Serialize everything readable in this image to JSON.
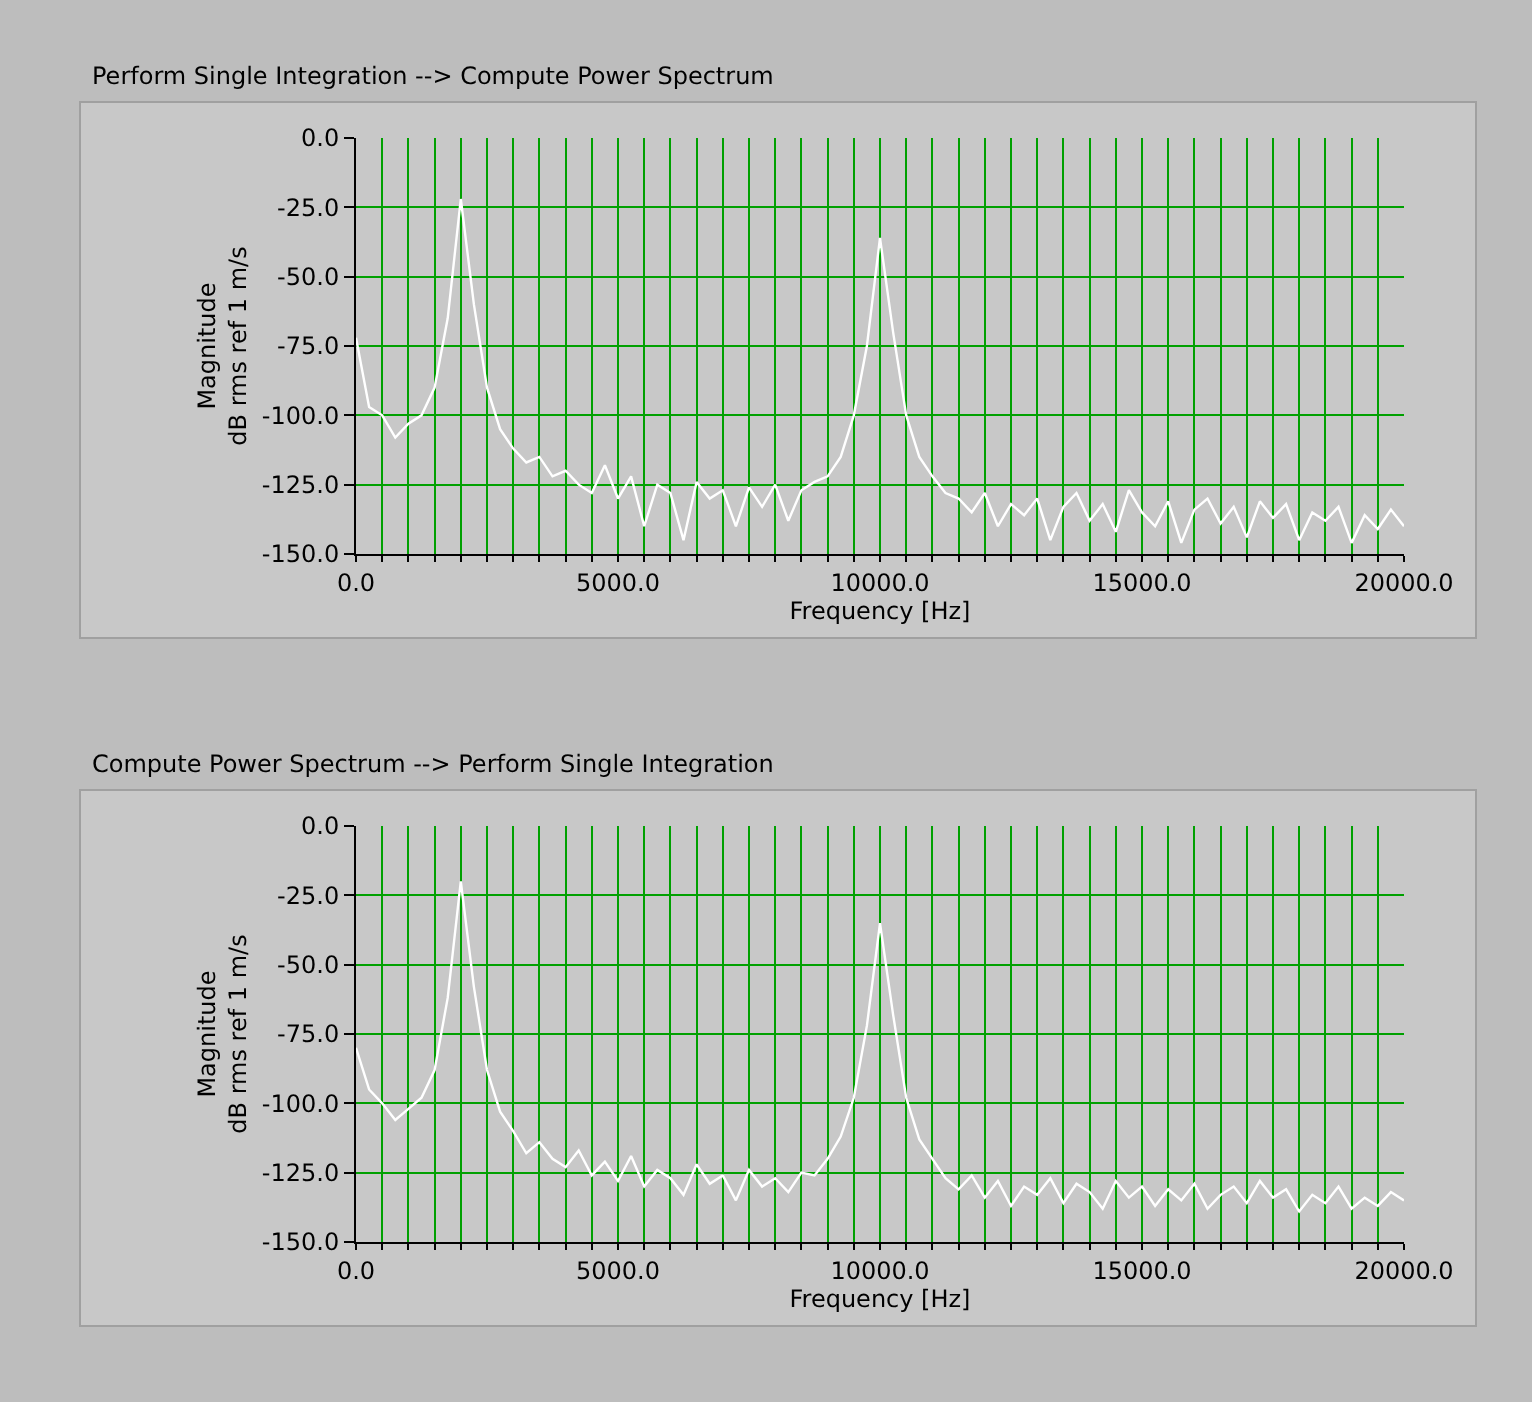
{
  "chart_data": [
    {
      "type": "line",
      "title": "Perform Single Integration --> Compute Power Spectrum",
      "xlabel": "Frequency [Hz]",
      "ylabel": "Magnitude\ndB rms ref 1 m/s",
      "x": [
        0,
        250,
        500,
        750,
        1000,
        1250,
        1500,
        1750,
        2000,
        2250,
        2500,
        2750,
        3000,
        3250,
        3500,
        3750,
        4000,
        4250,
        4500,
        4750,
        5000,
        5250,
        5500,
        5750,
        6000,
        6250,
        6500,
        6750,
        7000,
        7250,
        7500,
        7750,
        8000,
        8250,
        8500,
        8750,
        9000,
        9250,
        9500,
        9750,
        10000,
        10250,
        10500,
        10750,
        11000,
        11250,
        11500,
        11750,
        12000,
        12250,
        12500,
        12750,
        13000,
        13250,
        13500,
        13750,
        14000,
        14250,
        14500,
        14750,
        15000,
        15250,
        15500,
        15750,
        16000,
        16250,
        16500,
        16750,
        17000,
        17250,
        17500,
        17750,
        18000,
        18250,
        18500,
        18750,
        19000,
        19250,
        19500,
        19750,
        20000
      ],
      "series": [
        {
          "color": "#ffffff",
          "values": [
            -72,
            -97,
            -100,
            -108,
            -103,
            -100,
            -90,
            -65,
            -22,
            -60,
            -90,
            -105,
            -112,
            -117,
            -115,
            -122,
            -120,
            -125,
            -128,
            -118,
            -130,
            -122,
            -140,
            -125,
            -128,
            -145,
            -124,
            -130,
            -127,
            -140,
            -126,
            -133,
            -125,
            -138,
            -127,
            -124,
            -122,
            -115,
            -100,
            -75,
            -36,
            -70,
            -100,
            -115,
            -122,
            -128,
            -130,
            -135,
            -128,
            -140,
            -132,
            -136,
            -130,
            -145,
            -133,
            -128,
            -138,
            -132,
            -142,
            -127,
            -135,
            -140,
            -131,
            -146,
            -134,
            -130,
            -139,
            -133,
            -144,
            -131,
            -137,
            -132,
            -145,
            -135,
            -138,
            -133,
            -146,
            -136,
            -141,
            -134,
            -140
          ]
        }
      ],
      "xlim": [
        0,
        20000
      ],
      "ylim": [
        -150,
        0
      ],
      "xticks": [
        {
          "value": 0,
          "label": "0.0"
        },
        {
          "value": 500,
          "label": null
        },
        {
          "value": 1000,
          "label": null
        },
        {
          "value": 1500,
          "label": null
        },
        {
          "value": 2000,
          "label": null
        },
        {
          "value": 2500,
          "label": null
        },
        {
          "value": 3000,
          "label": null
        },
        {
          "value": 3500,
          "label": null
        },
        {
          "value": 4000,
          "label": null
        },
        {
          "value": 4500,
          "label": null
        },
        {
          "value": 5000,
          "label": "5000.0"
        },
        {
          "value": 5500,
          "label": null
        },
        {
          "value": 6000,
          "label": null
        },
        {
          "value": 6500,
          "label": null
        },
        {
          "value": 7000,
          "label": null
        },
        {
          "value": 7500,
          "label": null
        },
        {
          "value": 8000,
          "label": null
        },
        {
          "value": 8500,
          "label": null
        },
        {
          "value": 9000,
          "label": null
        },
        {
          "value": 9500,
          "label": null
        },
        {
          "value": 10000,
          "label": "10000.0"
        },
        {
          "value": 10500,
          "label": null
        },
        {
          "value": 11000,
          "label": null
        },
        {
          "value": 11500,
          "label": null
        },
        {
          "value": 12000,
          "label": null
        },
        {
          "value": 12500,
          "label": null
        },
        {
          "value": 13000,
          "label": null
        },
        {
          "value": 13500,
          "label": null
        },
        {
          "value": 14000,
          "label": null
        },
        {
          "value": 14500,
          "label": null
        },
        {
          "value": 15000,
          "label": "15000.0"
        },
        {
          "value": 15500,
          "label": null
        },
        {
          "value": 16000,
          "label": null
        },
        {
          "value": 16500,
          "label": null
        },
        {
          "value": 17000,
          "label": null
        },
        {
          "value": 17500,
          "label": null
        },
        {
          "value": 18000,
          "label": null
        },
        {
          "value": 18500,
          "label": null
        },
        {
          "value": 19000,
          "label": null
        },
        {
          "value": 19500,
          "label": null
        },
        {
          "value": 20000,
          "label": "20000.0"
        }
      ],
      "yticks": [
        {
          "value": 0,
          "label": "0.0"
        },
        {
          "value": -25,
          "label": "-25.0"
        },
        {
          "value": -50,
          "label": "-50.0"
        },
        {
          "value": -75,
          "label": "-75.0"
        },
        {
          "value": -100,
          "label": "-100.0"
        },
        {
          "value": -125,
          "label": "-125.0"
        },
        {
          "value": -150,
          "label": "-150.0"
        }
      ],
      "grid": true
    },
    {
      "type": "line",
      "title": "Compute Power Spectrum --> Perform Single Integration",
      "xlabel": "Frequency [Hz]",
      "ylabel": "Magnitude\ndB rms ref 1 m/s",
      "x": [
        0,
        250,
        500,
        750,
        1000,
        1250,
        1500,
        1750,
        2000,
        2250,
        2500,
        2750,
        3000,
        3250,
        3500,
        3750,
        4000,
        4250,
        4500,
        4750,
        5000,
        5250,
        5500,
        5750,
        6000,
        6250,
        6500,
        6750,
        7000,
        7250,
        7500,
        7750,
        8000,
        8250,
        8500,
        8750,
        9000,
        9250,
        9500,
        9750,
        10000,
        10250,
        10500,
        10750,
        11000,
        11250,
        11500,
        11750,
        12000,
        12250,
        12500,
        12750,
        13000,
        13250,
        13500,
        13750,
        14000,
        14250,
        14500,
        14750,
        15000,
        15250,
        15500,
        15750,
        16000,
        16250,
        16500,
        16750,
        17000,
        17250,
        17500,
        17750,
        18000,
        18250,
        18500,
        18750,
        19000,
        19250,
        19500,
        19750,
        20000
      ],
      "series": [
        {
          "color": "#ffffff",
          "values": [
            -80,
            -95,
            -100,
            -106,
            -102,
            -98,
            -88,
            -62,
            -20,
            -58,
            -88,
            -103,
            -110,
            -118,
            -114,
            -120,
            -123,
            -117,
            -126,
            -121,
            -128,
            -119,
            -130,
            -124,
            -127,
            -133,
            -122,
            -129,
            -126,
            -135,
            -124,
            -130,
            -127,
            -132,
            -125,
            -126,
            -120,
            -112,
            -98,
            -72,
            -35,
            -68,
            -98,
            -113,
            -120,
            -127,
            -131,
            -126,
            -134,
            -128,
            -137,
            -130,
            -133,
            -127,
            -136,
            -129,
            -132,
            -138,
            -128,
            -134,
            -130,
            -137,
            -131,
            -135,
            -129,
            -138,
            -133,
            -130,
            -136,
            -128,
            -134,
            -131,
            -139,
            -133,
            -136,
            -130,
            -138,
            -134,
            -137,
            -132,
            -135
          ]
        }
      ],
      "xlim": [
        0,
        20000
      ],
      "ylim": [
        -150,
        0
      ],
      "xticks": [
        {
          "value": 0,
          "label": "0.0"
        },
        {
          "value": 500,
          "label": null
        },
        {
          "value": 1000,
          "label": null
        },
        {
          "value": 1500,
          "label": null
        },
        {
          "value": 2000,
          "label": null
        },
        {
          "value": 2500,
          "label": null
        },
        {
          "value": 3000,
          "label": null
        },
        {
          "value": 3500,
          "label": null
        },
        {
          "value": 4000,
          "label": null
        },
        {
          "value": 4500,
          "label": null
        },
        {
          "value": 5000,
          "label": "5000.0"
        },
        {
          "value": 5500,
          "label": null
        },
        {
          "value": 6000,
          "label": null
        },
        {
          "value": 6500,
          "label": null
        },
        {
          "value": 7000,
          "label": null
        },
        {
          "value": 7500,
          "label": null
        },
        {
          "value": 8000,
          "label": null
        },
        {
          "value": 8500,
          "label": null
        },
        {
          "value": 9000,
          "label": null
        },
        {
          "value": 9500,
          "label": null
        },
        {
          "value": 10000,
          "label": "10000.0"
        },
        {
          "value": 10500,
          "label": null
        },
        {
          "value": 11000,
          "label": null
        },
        {
          "value": 11500,
          "label": null
        },
        {
          "value": 12000,
          "label": null
        },
        {
          "value": 12500,
          "label": null
        },
        {
          "value": 13000,
          "label": null
        },
        {
          "value": 13500,
          "label": null
        },
        {
          "value": 14000,
          "label": null
        },
        {
          "value": 14500,
          "label": null
        },
        {
          "value": 15000,
          "label": "15000.0"
        },
        {
          "value": 15500,
          "label": null
        },
        {
          "value": 16000,
          "label": null
        },
        {
          "value": 16500,
          "label": null
        },
        {
          "value": 17000,
          "label": null
        },
        {
          "value": 17500,
          "label": null
        },
        {
          "value": 18000,
          "label": null
        },
        {
          "value": 18500,
          "label": null
        },
        {
          "value": 19000,
          "label": null
        },
        {
          "value": 19500,
          "label": null
        },
        {
          "value": 20000,
          "label": "20000.0"
        }
      ],
      "yticks": [
        {
          "value": 0,
          "label": "0.0"
        },
        {
          "value": -25,
          "label": "-25.0"
        },
        {
          "value": -50,
          "label": "-50.0"
        },
        {
          "value": -75,
          "label": "-75.0"
        },
        {
          "value": -100,
          "label": "-100.0"
        },
        {
          "value": -125,
          "label": "-125.0"
        },
        {
          "value": -150,
          "label": "-150.0"
        }
      ],
      "grid": true
    }
  ]
}
